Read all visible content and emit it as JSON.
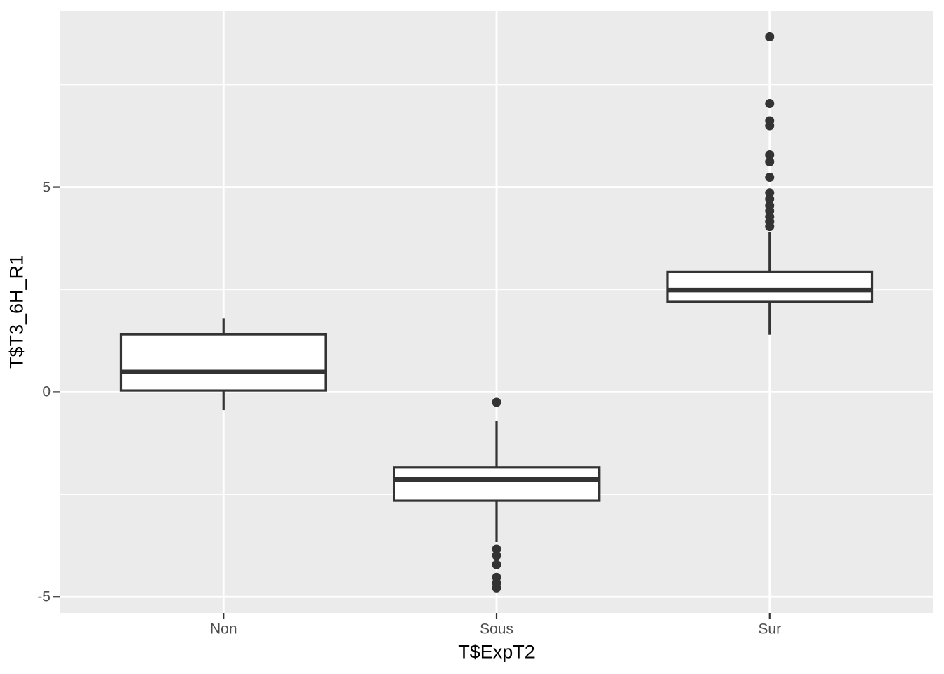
{
  "figure": {
    "background": "#FFFFFF"
  },
  "chart_data": {
    "type": "boxplot",
    "title": "",
    "xlabel": "T$ExpT2",
    "ylabel": "T$T3_6H_R1",
    "categories": [
      "Non",
      "Sous",
      "Sur"
    ],
    "yticks": [
      5,
      0,
      -5
    ],
    "ytick_labels": [
      "5",
      "0",
      "-5"
    ],
    "yticks_minor": [
      7.5,
      2.5,
      -2.5
    ],
    "ylim": [
      -5.39,
      9.31
    ],
    "xlim_units": [
      0.4,
      3.6
    ],
    "box_width_units": 0.75,
    "grid": "horizontal major and minor, vertical major at categories",
    "legend": "none",
    "series": [
      {
        "category": "Non",
        "whisker_low": -0.44,
        "q1": 0.04,
        "median": 0.49,
        "q3": 1.41,
        "whisker_high": 1.8,
        "outliers": []
      },
      {
        "category": "Sous",
        "whisker_low": -3.66,
        "q1": -2.65,
        "median": -2.13,
        "q3": -1.84,
        "whisker_high": -0.71,
        "outliers": [
          -0.25,
          -3.83,
          -3.99,
          -4.21,
          -4.52,
          -4.66,
          -4.78
        ]
      },
      {
        "category": "Sur",
        "whisker_low": 1.4,
        "q1": 2.2,
        "median": 2.49,
        "q3": 2.93,
        "whisker_high": 3.9,
        "outliers": [
          8.67,
          7.04,
          6.62,
          6.5,
          5.79,
          5.62,
          5.24,
          4.86,
          4.71,
          4.55,
          4.42,
          4.28,
          4.16,
          4.04
        ]
      }
    ],
    "colors": {
      "panel_background": "#EBEBEB",
      "grid_line": "#FFFFFF",
      "box_outline": "#333333",
      "box_fill": "#FFFFFF",
      "median_line": "#333333",
      "whisker_line": "#333333",
      "outlier_dot": "#333333",
      "tick_mark": "#333333",
      "tick_label": "#4D4D4D",
      "axis_title": "#000000"
    }
  }
}
